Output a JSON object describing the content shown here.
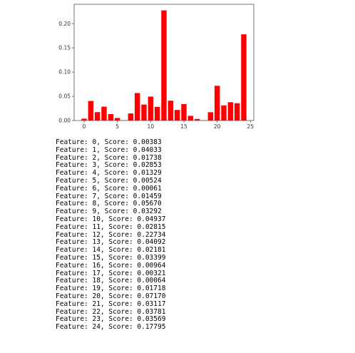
{
  "chart_data": {
    "type": "bar",
    "title": "",
    "xlabel": "",
    "ylabel": "",
    "color": "#ff0000",
    "xlim": [
      -1.5,
      25.5
    ],
    "ylim": [
      0,
      0.24
    ],
    "x": [
      0,
      1,
      2,
      3,
      4,
      5,
      6,
      7,
      8,
      9,
      10,
      11,
      12,
      13,
      14,
      15,
      16,
      17,
      18,
      19,
      20,
      21,
      22,
      23,
      24
    ],
    "values": [
      0.00383,
      0.04033,
      0.01738,
      0.02853,
      0.01329,
      0.00524,
      0.00061,
      0.01459,
      0.0567,
      0.03292,
      0.04937,
      0.02815,
      0.22734,
      0.04092,
      0.02181,
      0.03399,
      0.00964,
      0.00321,
      0.00064,
      0.01718,
      0.0717,
      0.03117,
      0.03781,
      0.03569,
      0.17795
    ],
    "x_ticks": [
      0,
      5,
      10,
      15,
      20,
      25
    ],
    "x_tick_labels": [
      "0",
      "5",
      "10",
      "15",
      "20",
      "25"
    ],
    "y_ticks": [
      0.0,
      0.05,
      0.1,
      0.15,
      0.2
    ],
    "y_tick_labels": [
      "0.00",
      "0.05",
      "0.10",
      "0.15",
      "0.20"
    ],
    "grid": false
  },
  "output": {
    "lines": [
      "Feature: 0, Score: 0.00383",
      "Feature: 1, Score: 0.04033",
      "Feature: 2, Score: 0.01738",
      "Feature: 3, Score: 0.02853",
      "Feature: 4, Score: 0.01329",
      "Feature: 5, Score: 0.00524",
      "Feature: 6, Score: 0.00061",
      "Feature: 7, Score: 0.01459",
      "Feature: 8, Score: 0.05670",
      "Feature: 9, Score: 0.03292",
      "Feature: 10, Score: 0.04937",
      "Feature: 11, Score: 0.02815",
      "Feature: 12, Score: 0.22734",
      "Feature: 13, Score: 0.04092",
      "Feature: 14, Score: 0.02181",
      "Feature: 15, Score: 0.03399",
      "Feature: 16, Score: 0.00964",
      "Feature: 17, Score: 0.00321",
      "Feature: 18, Score: 0.00064",
      "Feature: 19, Score: 0.01718",
      "Feature: 20, Score: 0.07170",
      "Feature: 21, Score: 0.03117",
      "Feature: 22, Score: 0.03781",
      "Feature: 23, Score: 0.03569",
      "Feature: 24, Score: 0.17795"
    ]
  }
}
